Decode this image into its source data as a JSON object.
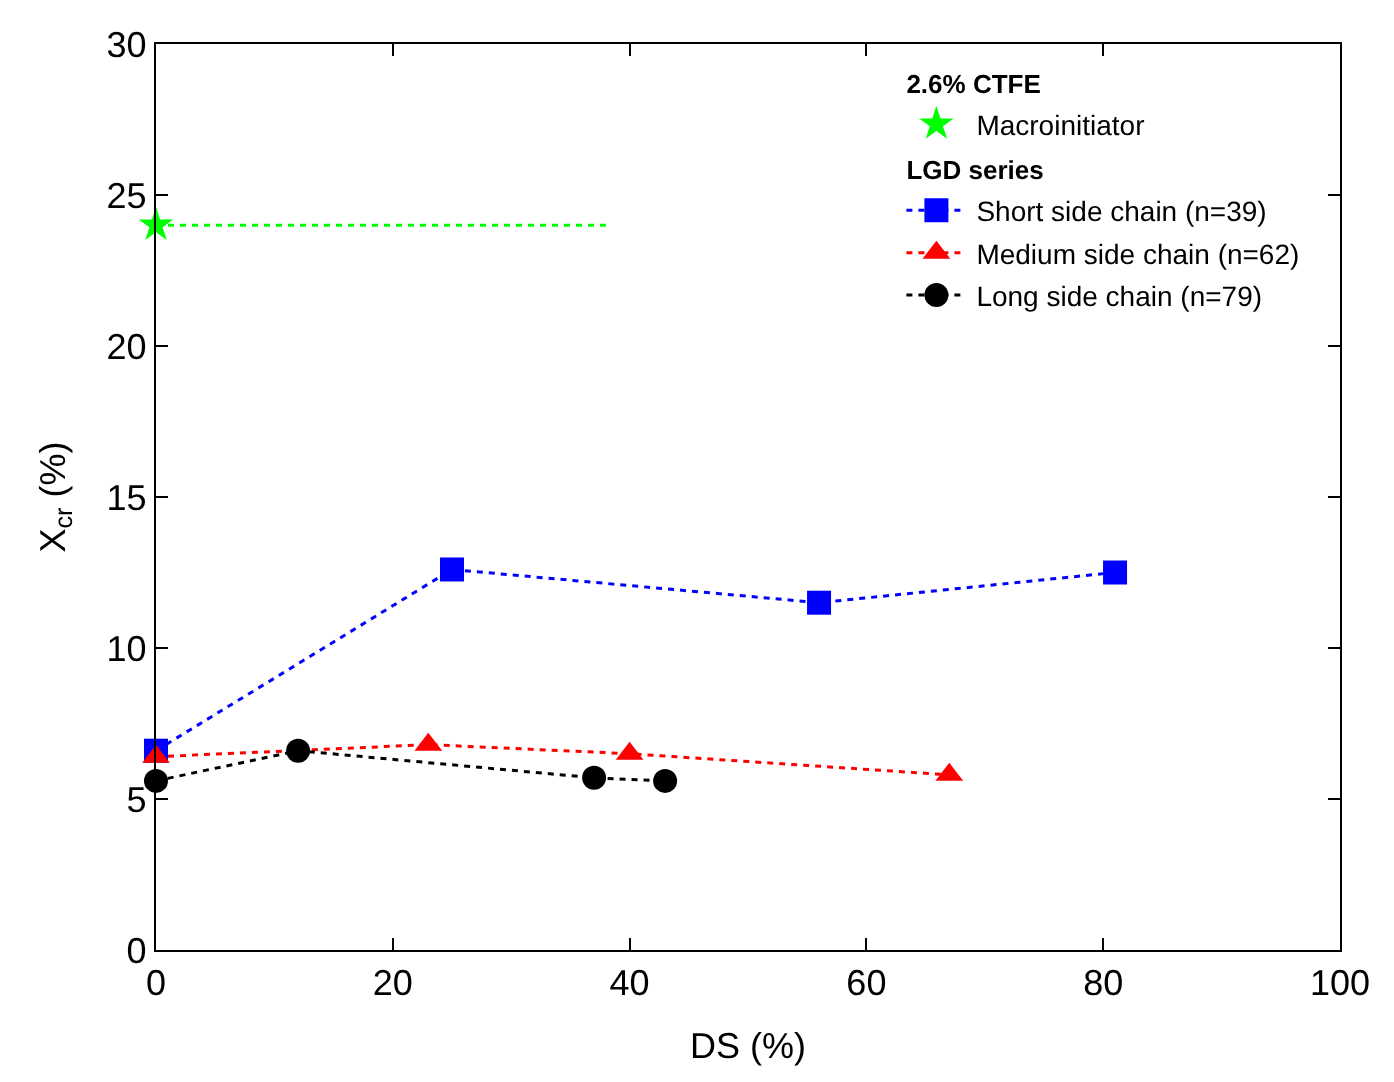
{
  "chart_data": {
    "type": "line",
    "xlabel": "DS (%)",
    "ylabel": "X$_{cr}$ (%)",
    "xlim": [
      0,
      100
    ],
    "xticks": [
      0,
      20,
      40,
      60,
      80,
      100
    ],
    "ylim": [
      0,
      30
    ],
    "yticks": [
      0,
      5,
      10,
      15,
      20,
      25,
      30
    ],
    "legend": "top right",
    "line_style": "dotted",
    "annotations": [
      "2.6% CTFE",
      "LGD series"
    ],
    "series": [
      {
        "name": "Macroinitiator",
        "type": "scatter",
        "marker": "star",
        "color": "#00ff00",
        "x": [
          0
        ],
        "values": [
          24
        ]
      },
      {
        "marker": "none",
        "color": "#00ff00",
        "x": [
          0,
          38
        ],
        "values": [
          24,
          24
        ]
      },
      {
        "name": "Short side chain (n=39)",
        "marker": "square",
        "color": "#0000ff",
        "x": [
          0,
          25,
          56,
          81
        ],
        "values": [
          6.6,
          12.6,
          11.5,
          12.5
        ]
      },
      {
        "name": "Medium side chain (n=62)",
        "marker": "triangle",
        "color": "#ff0000",
        "x": [
          0,
          23,
          40,
          67
        ],
        "values": [
          6.4,
          6.8,
          6.5,
          5.8
        ]
      },
      {
        "name": "Long side chain (n=79)",
        "marker": "circle",
        "color": "#000000",
        "x": [
          0,
          12,
          37,
          43
        ],
        "values": [
          5.6,
          6.6,
          5.7,
          5.6
        ]
      }
    ]
  }
}
